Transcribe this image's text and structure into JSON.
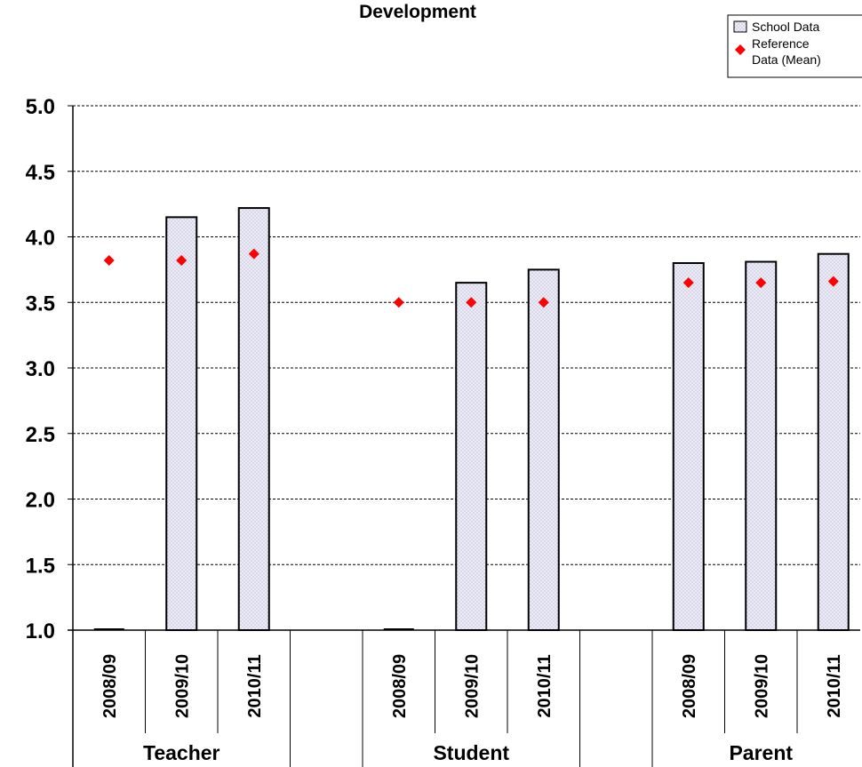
{
  "chart_data": {
    "type": "bar",
    "title": "Development",
    "groups": [
      "Teacher",
      "Student",
      "Parent"
    ],
    "categories": [
      "2008/09",
      "2009/10",
      "2010/11"
    ],
    "series": [
      {
        "name": "School Data",
        "values": [
          [
            null,
            4.15,
            4.22
          ],
          [
            null,
            3.65,
            3.75
          ],
          [
            3.8,
            3.81,
            3.87
          ]
        ]
      },
      {
        "name_lines": [
          "Reference",
          "Data (Mean)"
        ],
        "values": [
          [
            3.82,
            3.82,
            3.87
          ],
          [
            3.5,
            3.5,
            3.5
          ],
          [
            3.65,
            3.65,
            3.66
          ]
        ]
      }
    ],
    "yticks": [
      "1.0",
      "1.5",
      "2.0",
      "2.5",
      "3.0",
      "3.5",
      "4.0",
      "4.5",
      "5.0"
    ],
    "ylim": [
      1.0,
      5.0
    ],
    "grid": true,
    "legend": "top-right",
    "colors": {
      "bar_fill": "#e8e8f6",
      "bar_stroke": "#000000",
      "marker": "#ff0000"
    }
  }
}
